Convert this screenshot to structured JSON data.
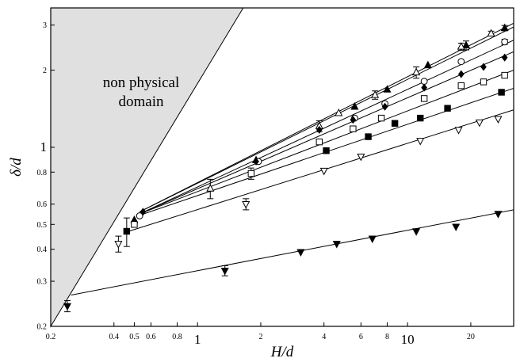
{
  "chart_data": {
    "type": "scatter",
    "xscale": "log",
    "yscale": "log",
    "xlim": [
      0.2,
      32
    ],
    "ylim": [
      0.2,
      3.5
    ],
    "xlabel": "H/d",
    "ylabel": "δ/d",
    "x_ticks": [
      {
        "value": 0.2,
        "label": "0.2",
        "size": "small"
      },
      {
        "value": 0.4,
        "label": "0.4",
        "size": "small"
      },
      {
        "value": 0.5,
        "label": "0.5",
        "size": "small"
      },
      {
        "value": 0.6,
        "label": "0.6",
        "size": "small"
      },
      {
        "value": 0.8,
        "label": "0.8",
        "size": "small"
      },
      {
        "value": 1,
        "label": "1",
        "size": "large"
      },
      {
        "value": 2,
        "label": "2",
        "size": "small"
      },
      {
        "value": 4,
        "label": "4",
        "size": "small"
      },
      {
        "value": 6,
        "label": "6",
        "size": "small"
      },
      {
        "value": 8,
        "label": "8",
        "size": "small"
      },
      {
        "value": 10,
        "label": "10",
        "size": "large"
      },
      {
        "value": 20,
        "label": "20",
        "size": "small"
      }
    ],
    "y_ticks": [
      {
        "value": 0.2,
        "label": "0.2",
        "size": "small"
      },
      {
        "value": 0.3,
        "label": "0.3",
        "size": "small"
      },
      {
        "value": 0.4,
        "label": "0.4",
        "size": "small"
      },
      {
        "value": 0.5,
        "label": "0.5",
        "size": "small"
      },
      {
        "value": 0.6,
        "label": "0.6",
        "size": "small"
      },
      {
        "value": 0.8,
        "label": "0.8",
        "size": "small"
      },
      {
        "value": 1,
        "label": "1",
        "size": "large"
      },
      {
        "value": 2,
        "label": "2",
        "size": "small"
      },
      {
        "value": 3,
        "label": "3",
        "size": "small"
      }
    ],
    "shaded_region": {
      "label_lines": [
        "non physical",
        "domain"
      ],
      "vertices": [
        [
          0.2,
          0.2
        ],
        [
          0.2,
          3.5
        ],
        [
          1.65,
          3.5
        ]
      ],
      "fill": "#e0e0e0"
    },
    "series": [
      {
        "marker": "triangle-up-filled",
        "fit": [
          [
            0.53,
            0.56
          ],
          [
            32,
            3.05
          ]
        ],
        "points": [
          {
            "x": 0.5,
            "y": 0.52
          },
          {
            "x": 1.9,
            "y": 0.89
          },
          {
            "x": 5.6,
            "y": 1.44
          },
          {
            "x": 8,
            "y": 1.68
          },
          {
            "x": 12.5,
            "y": 2.09
          },
          {
            "x": 19,
            "y": 2.5,
            "err": 0.1
          },
          {
            "x": 29,
            "y": 2.92,
            "err": 0.07
          }
        ]
      },
      {
        "marker": "triangle-up-open",
        "fit": [
          [
            0.53,
            0.56
          ],
          [
            32,
            2.95
          ]
        ],
        "points": [
          {
            "x": 1.15,
            "y": 0.69,
            "err": 0.06
          },
          {
            "x": 3.8,
            "y": 1.21,
            "err": 0.06
          },
          {
            "x": 4.7,
            "y": 1.36
          },
          {
            "x": 7,
            "y": 1.6,
            "err": 0.06
          },
          {
            "x": 11,
            "y": 1.96,
            "err": 0.1
          },
          {
            "x": 18,
            "y": 2.47,
            "err": 0.08
          },
          {
            "x": 25,
            "y": 2.78,
            "err": 0.06
          }
        ]
      },
      {
        "marker": "circle-open",
        "fit": [
          [
            0.53,
            0.55
          ],
          [
            32,
            2.62
          ]
        ],
        "points": [
          {
            "x": 0.53,
            "y": 0.54
          },
          {
            "x": 1.95,
            "y": 0.88
          },
          {
            "x": 5.6,
            "y": 1.3
          },
          {
            "x": 7.8,
            "y": 1.48
          },
          {
            "x": 12,
            "y": 1.81
          },
          {
            "x": 18,
            "y": 2.16
          },
          {
            "x": 29,
            "y": 2.58,
            "err": 0.06
          }
        ]
      },
      {
        "marker": "diamond-filled",
        "fit": [
          [
            0.53,
            0.55
          ],
          [
            32,
            2.36
          ]
        ],
        "points": [
          {
            "x": 0.55,
            "y": 0.56
          },
          {
            "x": 1.9,
            "y": 0.88
          },
          {
            "x": 3.8,
            "y": 1.17
          },
          {
            "x": 5.5,
            "y": 1.28
          },
          {
            "x": 7.8,
            "y": 1.44
          },
          {
            "x": 12,
            "y": 1.71
          },
          {
            "x": 18,
            "y": 1.93
          },
          {
            "x": 23,
            "y": 2.06
          },
          {
            "x": 29,
            "y": 2.24
          }
        ]
      },
      {
        "marker": "square-open",
        "fit": [
          [
            0.53,
            0.55
          ],
          [
            32,
            2.0
          ]
        ],
        "points": [
          {
            "x": 0.5,
            "y": 0.5
          },
          {
            "x": 1.8,
            "y": 0.79,
            "err": 0.04
          },
          {
            "x": 3.8,
            "y": 1.05
          },
          {
            "x": 5.5,
            "y": 1.18
          },
          {
            "x": 7.5,
            "y": 1.3
          },
          {
            "x": 12,
            "y": 1.55
          },
          {
            "x": 18,
            "y": 1.74
          },
          {
            "x": 23,
            "y": 1.8
          },
          {
            "x": 29,
            "y": 1.91
          }
        ]
      },
      {
        "marker": "square-filled",
        "fit": [
          [
            0.52,
            0.54
          ],
          [
            32,
            1.7
          ]
        ],
        "points": [
          {
            "x": 0.46,
            "y": 0.47,
            "err": 0.06
          },
          {
            "x": 4.1,
            "y": 0.97
          },
          {
            "x": 6.5,
            "y": 1.1
          },
          {
            "x": 8.7,
            "y": 1.24
          },
          {
            "x": 11.5,
            "y": 1.3
          },
          {
            "x": 15.5,
            "y": 1.42
          },
          {
            "x": 28,
            "y": 1.64
          }
        ]
      },
      {
        "marker": "triangle-down-open",
        "fit": [
          [
            0.47,
            0.47
          ],
          [
            32,
            1.4
          ]
        ],
        "points": [
          {
            "x": 0.42,
            "y": 0.42,
            "err": 0.03
          },
          {
            "x": 1.7,
            "y": 0.6,
            "err": 0.03
          },
          {
            "x": 4,
            "y": 0.81
          },
          {
            "x": 6,
            "y": 0.92
          },
          {
            "x": 11.5,
            "y": 1.06
          },
          {
            "x": 17.5,
            "y": 1.17
          },
          {
            "x": 22,
            "y": 1.25
          },
          {
            "x": 27,
            "y": 1.29
          }
        ]
      },
      {
        "marker": "triangle-down-filled",
        "fit": [
          [
            0.25,
            0.265
          ],
          [
            32,
            0.57
          ]
        ],
        "points": [
          {
            "x": 0.24,
            "y": 0.24,
            "err": 0.012
          },
          {
            "x": 1.35,
            "y": 0.33,
            "err": 0.015
          },
          {
            "x": 3.1,
            "y": 0.39
          },
          {
            "x": 4.6,
            "y": 0.42
          },
          {
            "x": 6.8,
            "y": 0.44
          },
          {
            "x": 11,
            "y": 0.47
          },
          {
            "x": 17,
            "y": 0.49
          },
          {
            "x": 27,
            "y": 0.55
          }
        ]
      }
    ]
  }
}
